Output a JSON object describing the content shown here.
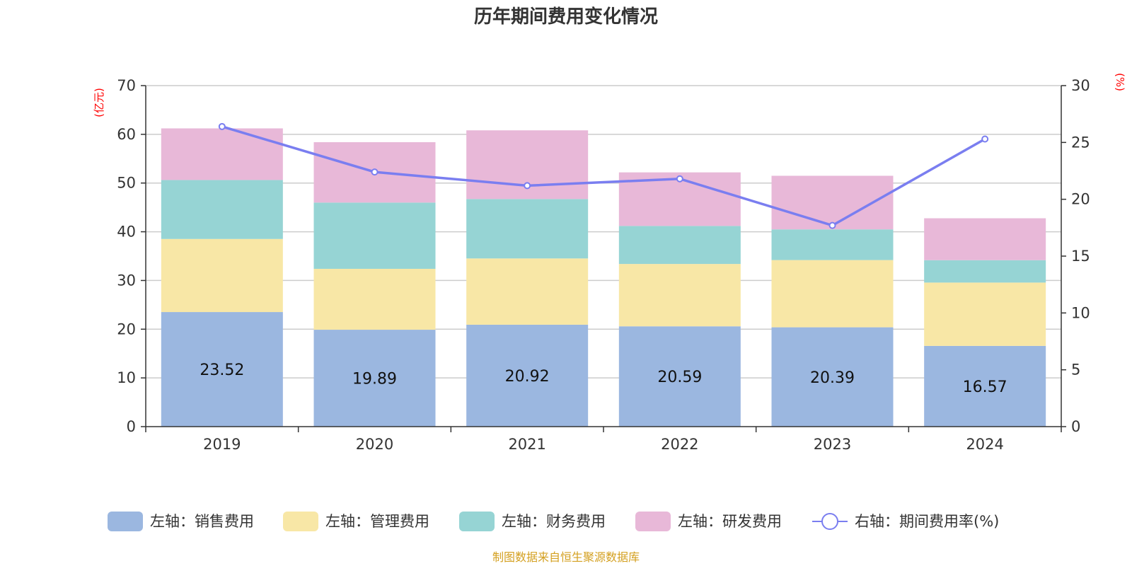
{
  "chart_data": {
    "type": "bar",
    "stacked": true,
    "title": "历年期间费用变化情况",
    "categories": [
      "2019",
      "2020",
      "2021",
      "2022",
      "2023",
      "2024"
    ],
    "left_axis": {
      "unit": "(亿元)",
      "ylim": [
        0,
        70
      ],
      "ticks": [
        0,
        10,
        20,
        30,
        40,
        50,
        60,
        70
      ]
    },
    "right_axis": {
      "unit": "(%)",
      "ylim": [
        0,
        30
      ],
      "ticks": [
        0,
        5,
        10,
        15,
        20,
        25,
        30
      ]
    },
    "series": [
      {
        "name": "左轴：销售费用",
        "axis": "left",
        "color": "#9bb7e0",
        "values": [
          23.52,
          19.89,
          20.92,
          20.59,
          20.39,
          16.57
        ],
        "labels": [
          "23.52",
          "19.89",
          "20.92",
          "20.59",
          "20.39",
          "16.57"
        ]
      },
      {
        "name": "左轴：管理费用",
        "axis": "left",
        "color": "#f8e7a6",
        "values": [
          15.0,
          12.5,
          13.6,
          12.8,
          13.8,
          13.0
        ]
      },
      {
        "name": "左轴：财务费用",
        "axis": "left",
        "color": "#96d4d4",
        "values": [
          12.1,
          13.6,
          12.2,
          7.8,
          6.3,
          4.6
        ]
      },
      {
        "name": "左轴：研发费用",
        "axis": "left",
        "color": "#e8b8d8",
        "values": [
          10.6,
          12.4,
          14.1,
          11.0,
          11.0,
          8.6
        ]
      },
      {
        "name": "右轴：期间费用率(%)",
        "axis": "right",
        "type": "line",
        "color": "#7a7ef0",
        "values": [
          26.4,
          22.4,
          21.2,
          21.8,
          17.7,
          25.3
        ]
      }
    ],
    "grid": true,
    "legend_position": "bottom"
  },
  "source_note": "制图数据来自恒生聚源数据库"
}
